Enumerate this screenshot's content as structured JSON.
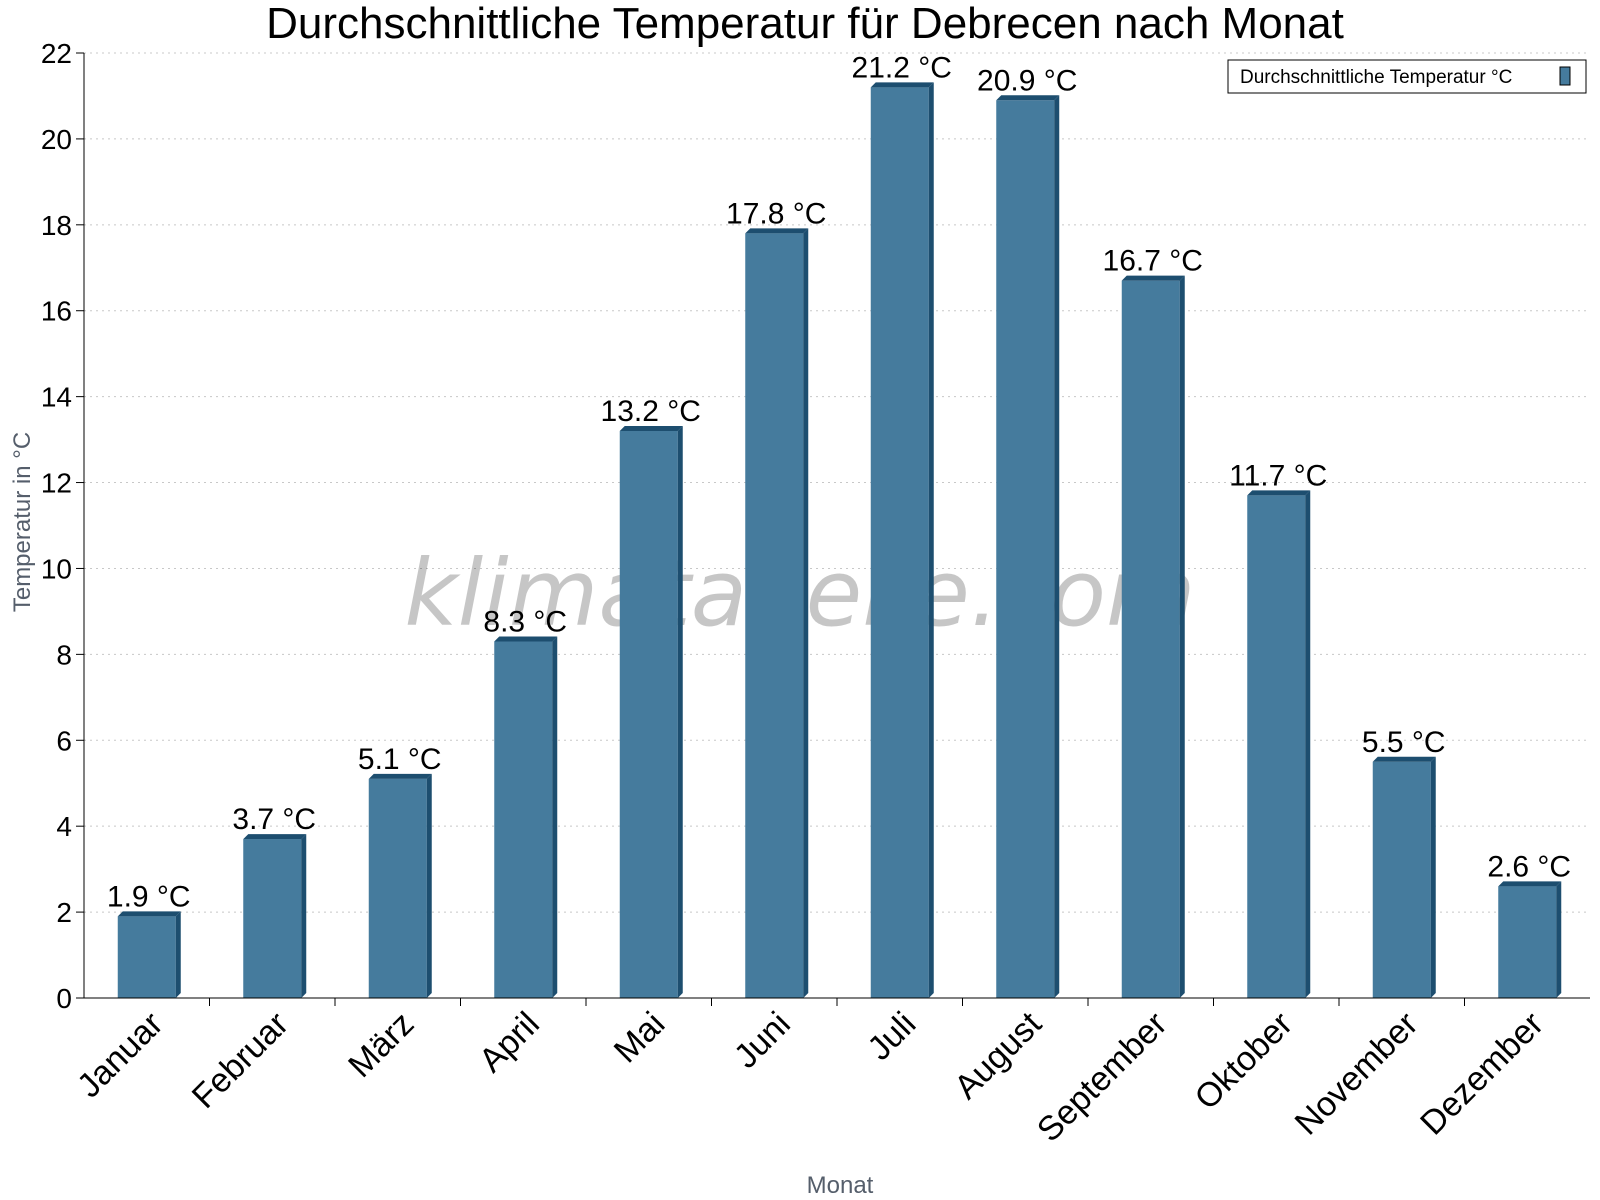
{
  "chart_data": {
    "type": "bar",
    "title": "Durchschnittliche Temperatur für Debrecen nach Monat",
    "xlabel": "Monat",
    "ylabel": "Temperatur in °C",
    "categories": [
      "Januar",
      "Februar",
      "März",
      "April",
      "Mai",
      "Juni",
      "Juli",
      "August",
      "September",
      "Oktober",
      "November",
      "Dezember"
    ],
    "series": [
      {
        "name": "Durchschnittliche Temperatur °C",
        "values": [
          1.9,
          3.7,
          5.1,
          8.3,
          13.2,
          17.8,
          21.2,
          20.9,
          16.7,
          11.7,
          5.5,
          2.6
        ],
        "labels": [
          "1.9 °C",
          "3.7 °C",
          "5.1 °C",
          "8.3 °C",
          "13.2 °C",
          "17.8 °C",
          "21.2 °C",
          "20.9 °C",
          "16.7 °C",
          "11.7 °C",
          "5.5 °C",
          "2.6 °C"
        ]
      }
    ],
    "ylim": [
      0,
      22
    ],
    "yticks": [
      0,
      2,
      4,
      6,
      8,
      10,
      12,
      14,
      16,
      18,
      20,
      22
    ],
    "grid": true,
    "legend_position": "top-right",
    "colors": {
      "bar": "#457b9d",
      "bar_side": "#1d4e6f",
      "grid": "#c8c8c8"
    },
    "watermark": "klimatabelle.com"
  }
}
